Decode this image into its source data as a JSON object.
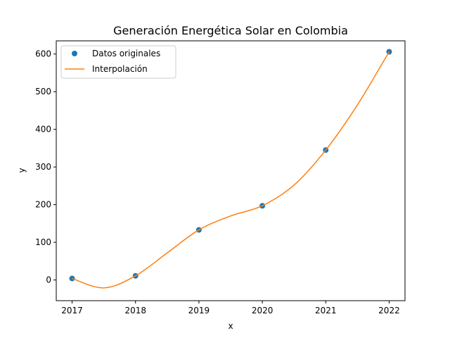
{
  "chart_data": {
    "type": "line",
    "title": "Generación Energética Solar en Colombia",
    "xlabel": "x",
    "ylabel": "y",
    "xlim": [
      2016.75,
      2022.25
    ],
    "ylim": [
      -55,
      635
    ],
    "x_ticks": [
      "2017",
      "2018",
      "2019",
      "2020",
      "2021",
      "2022"
    ],
    "y_ticks": [
      "0",
      "100",
      "200",
      "300",
      "400",
      "500",
      "600"
    ],
    "legend_position": "upper-left",
    "grid": false,
    "series": [
      {
        "name": "Datos originales",
        "kind": "scatter",
        "color": "#1f77b4",
        "x": [
          2017,
          2018,
          2019,
          2020,
          2021,
          2022
        ],
        "y": [
          4,
          11,
          133,
          197,
          345,
          606
        ]
      },
      {
        "name": "Interpolación",
        "kind": "line",
        "color": "#ff7f0e",
        "x": [
          2017,
          2017.5,
          2018,
          2018.5,
          2019,
          2019.5,
          2020,
          2020.5,
          2021,
          2021.5,
          2022
        ],
        "y": [
          4,
          -21,
          11,
          72,
          133,
          170,
          197,
          252,
          345,
          465,
          606
        ]
      }
    ]
  }
}
